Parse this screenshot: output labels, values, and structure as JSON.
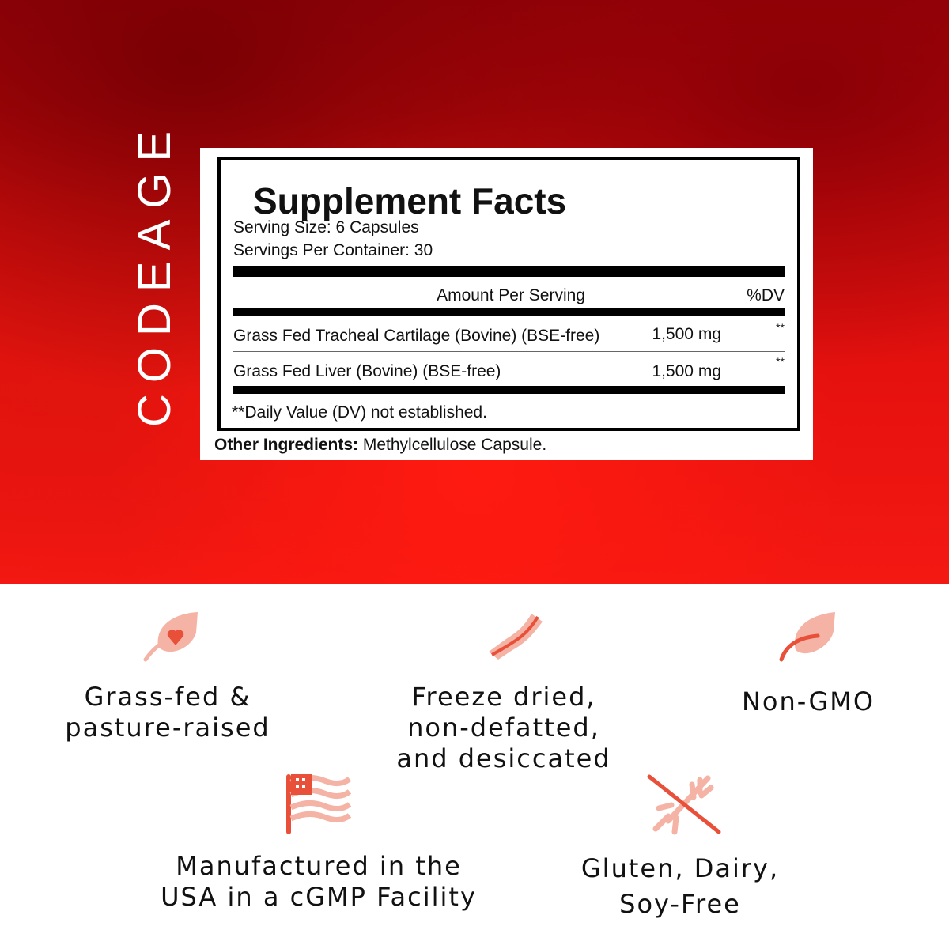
{
  "brand": "CODEAGE",
  "facts": {
    "title": "Supplement Facts",
    "serving_size": "Serving Size: 6 Capsules",
    "servings_per_container": "Servings Per Container: 30",
    "col_amount": "Amount Per Serving",
    "col_dv": "%DV",
    "rows": [
      {
        "name": "Grass Fed Tracheal Cartilage (Bovine) (BSE-free)",
        "amount": "1,500 mg",
        "dv": "**"
      },
      {
        "name": "Grass Fed Liver (Bovine) (BSE-free)",
        "amount": "1,500 mg",
        "dv": "**"
      }
    ],
    "footnote": "**Daily Value (DV) not established.",
    "other_label": "Other Ingredients:",
    "other_value": " Methylcellulose Capsule."
  },
  "features": [
    {
      "icon": "leaf-heart-icon",
      "line1": "Grass-fed &",
      "line2": "pasture-raised"
    },
    {
      "icon": "freeze-dried-strip-icon",
      "line1": "Freeze dried,",
      "line2": "non-defatted,",
      "line3": "and desiccated"
    },
    {
      "icon": "leaf-icon",
      "line1": "Non-GMO"
    },
    {
      "icon": "usa-flag-icon",
      "line1": "Manufactured in the",
      "line2": "USA in a cGMP Facility"
    },
    {
      "icon": "no-gluten-dairy-soy-icon",
      "line1": "Gluten, Dairy,",
      "line2": "Soy-Free"
    }
  ],
  "colors": {
    "hero": "#e8120f",
    "icon_dark": "#e8503a",
    "icon_light": "#f4b3a4"
  }
}
